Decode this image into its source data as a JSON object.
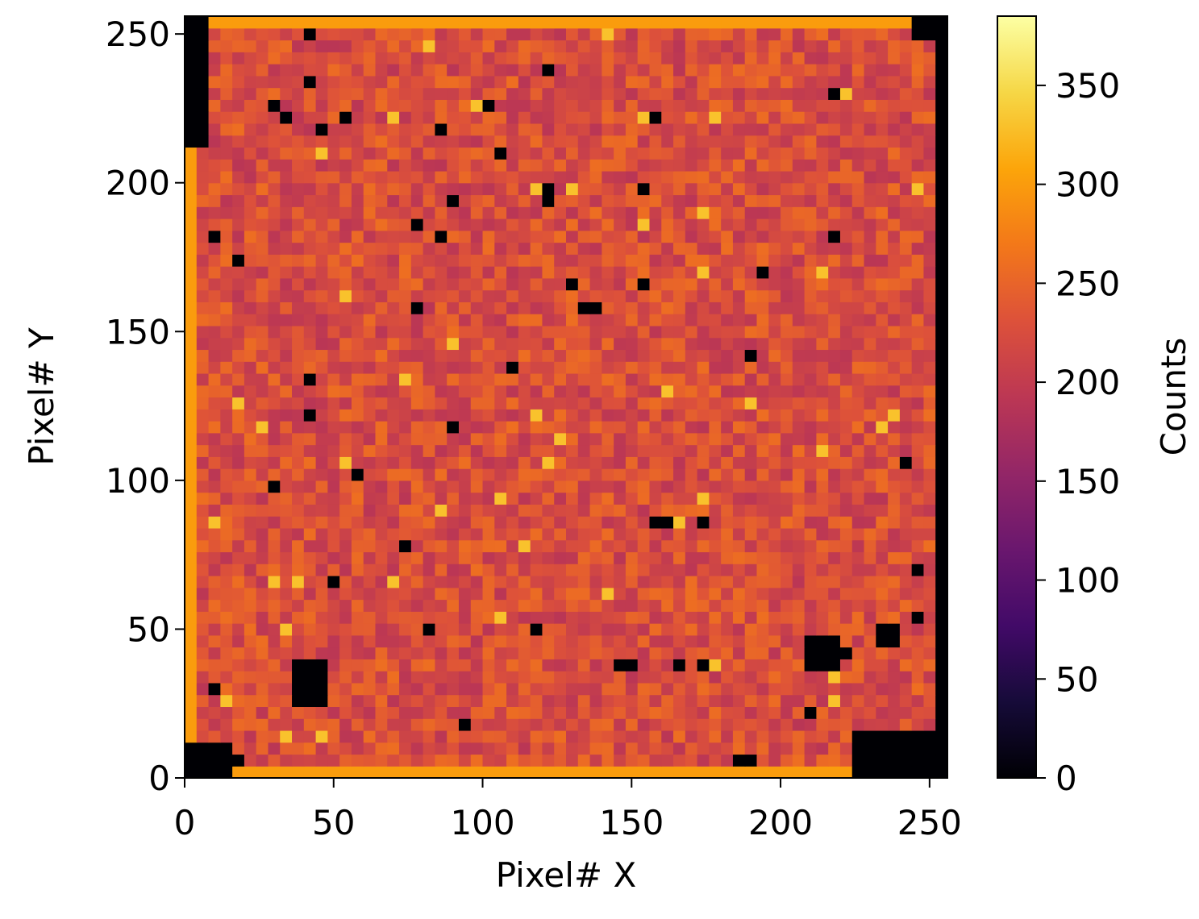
{
  "chart_data": {
    "type": "heatmap",
    "title": "",
    "xlabel": "Pixel# X",
    "ylabel": "Pixel# Y",
    "xlim": [
      0,
      256
    ],
    "ylim": [
      0,
      256
    ],
    "x_ticks": [
      0,
      50,
      100,
      150,
      200,
      250
    ],
    "y_ticks": [
      0,
      50,
      100,
      150,
      200,
      250
    ],
    "colormap": "inferno",
    "colorbar": {
      "label": "Counts",
      "range": [
        0,
        385
      ],
      "ticks": [
        0,
        50,
        100,
        150,
        200,
        250,
        300,
        350
      ]
    },
    "typical_value": 225,
    "grid": false,
    "dead_regions": [
      {
        "x": 42,
        "y": 32,
        "description": "large elliptical dead area"
      },
      {
        "x": 215,
        "y": 42,
        "description": "irregular dead area"
      },
      {
        "x": 236,
        "y": 47,
        "description": "curved dead area"
      },
      {
        "x": 122,
        "y": 196,
        "description": "dead spot"
      },
      {
        "x": 161,
        "y": 87,
        "description": "dead spot"
      },
      {
        "x": 148,
        "y": 37,
        "description": "dead spot"
      },
      {
        "x": 130,
        "y": 165,
        "description": "dead spot"
      },
      {
        "x": 136,
        "y": 157,
        "description": "dead spot"
      },
      {
        "x": 91,
        "y": 193,
        "description": "dead spot"
      },
      {
        "x": 188,
        "y": 7,
        "description": "dead spot"
      }
    ],
    "dead_corners": [
      "bottom-left",
      "bottom-right",
      "top-left",
      "top-right"
    ]
  }
}
